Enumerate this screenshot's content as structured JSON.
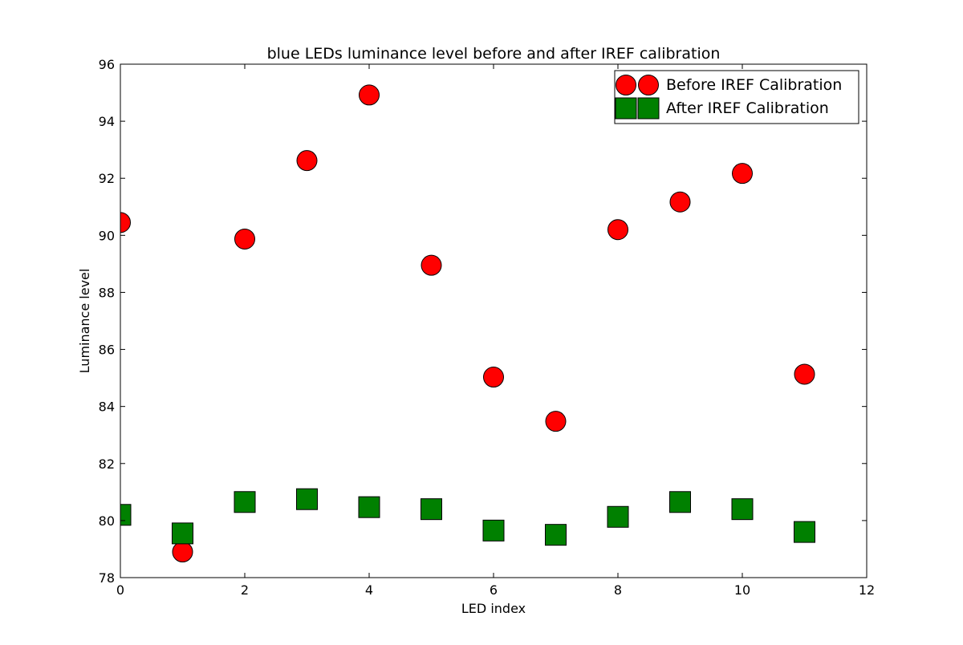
{
  "chart_data": {
    "type": "scatter",
    "title": "blue LEDs luminance level before and after IREF calibration",
    "xlabel": "LED index",
    "ylabel": "Luminance level",
    "xlim": [
      0,
      12
    ],
    "ylim": [
      78,
      96
    ],
    "xticks": [
      0,
      2,
      4,
      6,
      8,
      10,
      12
    ],
    "yticks": [
      78,
      80,
      82,
      84,
      86,
      88,
      90,
      92,
      94,
      96
    ],
    "grid": false,
    "legend_position": "top-right",
    "series": [
      {
        "name": "Before IREF Calibration",
        "marker": "circle",
        "color": "#ff0000",
        "x": [
          0,
          1,
          2,
          3,
          4,
          5,
          6,
          7,
          8,
          9,
          10,
          11
        ],
        "y": [
          90.45,
          78.9,
          89.87,
          92.62,
          94.92,
          88.95,
          85.03,
          83.48,
          90.2,
          91.17,
          92.17,
          85.13
        ]
      },
      {
        "name": "After IREF Calibration",
        "marker": "square",
        "color": "#008000",
        "x": [
          0,
          1,
          2,
          3,
          4,
          5,
          6,
          7,
          8,
          9,
          10,
          11
        ],
        "y": [
          80.2,
          79.55,
          80.65,
          80.75,
          80.47,
          80.4,
          79.65,
          79.5,
          80.13,
          80.65,
          80.4,
          79.6
        ]
      }
    ]
  }
}
